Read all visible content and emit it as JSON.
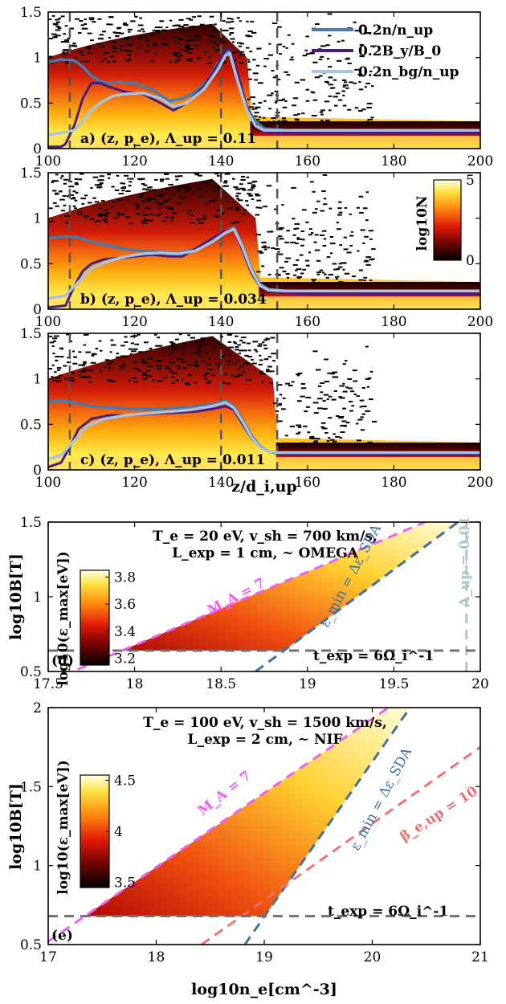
{
  "colors": {
    "n_line": "#4a7aa8",
    "By_line": "#4a1a80",
    "nbg_line": "#a8c4dc",
    "vline": "#555555",
    "MA_line": "#f060f0",
    "eps_line": "#4070a8",
    "beta_line": "#f07070",
    "lambda_line": "#a8c8cc",
    "texp_line": "#707070"
  },
  "chart_data": [
    {
      "panel": "a",
      "type": "heatmap",
      "xlim": [
        100,
        200
      ],
      "ylim": [
        0,
        1.5
      ],
      "x_ticks": [
        "100",
        "120",
        "140",
        "160",
        "180",
        "200"
      ],
      "y_ticks": [
        "0",
        "0.5",
        "1",
        "1.5"
      ],
      "xlabel": "",
      "panel_label": "a)  (z, p_e), Λ_up = 0.11",
      "vlines": [
        105,
        140,
        153
      ],
      "legend": [
        "0.2n/n_up",
        "0.2B_y/B_0",
        "0.2n_bg/n_up"
      ],
      "series": [
        {
          "name": "0.2n/n_up",
          "x": [
            100,
            103,
            106,
            108,
            110,
            113,
            116,
            120,
            124,
            128,
            131,
            134,
            137,
            139,
            141,
            142,
            144,
            146,
            148,
            150,
            155,
            160,
            180,
            200
          ],
          "y": [
            0.95,
            0.98,
            0.97,
            0.9,
            0.8,
            0.72,
            0.73,
            0.72,
            0.65,
            0.52,
            0.55,
            0.62,
            0.75,
            0.92,
            1.05,
            1.08,
            0.75,
            0.45,
            0.3,
            0.22,
            0.2,
            0.2,
            0.2,
            0.2
          ]
        },
        {
          "name": "0.2B_y/B_0",
          "x": [
            100,
            103,
            104,
            106,
            108,
            110,
            112,
            114,
            118,
            122,
            126,
            129,
            132,
            136,
            139,
            141,
            142,
            144,
            146,
            148,
            150,
            155,
            160,
            200
          ],
          "y": [
            0.02,
            0.02,
            0.05,
            0.25,
            0.55,
            0.72,
            0.72,
            0.68,
            0.62,
            0.6,
            0.5,
            0.42,
            0.5,
            0.68,
            0.9,
            1.08,
            1.1,
            0.8,
            0.45,
            0.25,
            0.18,
            0.17,
            0.17,
            0.17
          ]
        },
        {
          "name": "0.2n_bg/n_up",
          "x": [
            100,
            104,
            106,
            108,
            110,
            112,
            115,
            118,
            122,
            126,
            129,
            132,
            136,
            139,
            141,
            142,
            144,
            146,
            148,
            150,
            155,
            160,
            200
          ],
          "y": [
            0.15,
            0.18,
            0.2,
            0.3,
            0.42,
            0.5,
            0.58,
            0.6,
            0.61,
            0.55,
            0.46,
            0.5,
            0.65,
            0.85,
            1.02,
            1.05,
            0.72,
            0.42,
            0.25,
            0.2,
            0.2,
            0.2,
            0.2
          ]
        }
      ]
    },
    {
      "panel": "b",
      "type": "heatmap",
      "xlim": [
        100,
        200
      ],
      "ylim": [
        0,
        1.5
      ],
      "x_ticks": [
        "100",
        "120",
        "140",
        "160",
        "180",
        "200"
      ],
      "y_ticks": [
        "0",
        "0.5",
        "1",
        "1.5"
      ],
      "xlabel": "",
      "panel_label": "b)  (z, p_e), Λ_up = 0.034",
      "vlines": [
        105,
        140,
        153
      ],
      "colorbar": {
        "label": "log10N",
        "ticks": [
          "0",
          "5"
        ],
        "range": [
          0,
          5
        ]
      },
      "series": [
        {
          "name": "0.2n/n_up",
          "x": [
            100,
            104,
            107,
            110,
            114,
            118,
            122,
            126,
            130,
            134,
            138,
            141,
            143,
            145,
            147,
            149,
            151,
            155,
            160,
            200
          ],
          "y": [
            0.78,
            0.8,
            0.79,
            0.74,
            0.7,
            0.66,
            0.64,
            0.63,
            0.62,
            0.66,
            0.76,
            0.86,
            0.9,
            0.7,
            0.45,
            0.28,
            0.22,
            0.2,
            0.2,
            0.2
          ]
        },
        {
          "name": "0.2B_y/B_0",
          "x": [
            100,
            104,
            106,
            108,
            110,
            113,
            116,
            120,
            124,
            128,
            131,
            134,
            138,
            141,
            143,
            145,
            147,
            149,
            151,
            155,
            160,
            200
          ],
          "y": [
            0.02,
            0.04,
            0.25,
            0.42,
            0.5,
            0.55,
            0.56,
            0.58,
            0.6,
            0.58,
            0.58,
            0.66,
            0.78,
            0.86,
            0.88,
            0.65,
            0.4,
            0.25,
            0.2,
            0.18,
            0.17,
            0.17
          ]
        },
        {
          "name": "0.2n_bg/n_up",
          "x": [
            100,
            104,
            107,
            110,
            114,
            118,
            122,
            126,
            130,
            134,
            138,
            141,
            143,
            145,
            147,
            149,
            151,
            155,
            160,
            200
          ],
          "y": [
            0.12,
            0.15,
            0.3,
            0.45,
            0.53,
            0.58,
            0.61,
            0.62,
            0.61,
            0.64,
            0.74,
            0.84,
            0.88,
            0.68,
            0.43,
            0.26,
            0.21,
            0.2,
            0.2,
            0.2
          ]
        }
      ]
    },
    {
      "panel": "c",
      "type": "heatmap",
      "xlim": [
        100,
        200
      ],
      "ylim": [
        0,
        1.5
      ],
      "x_ticks": [
        "100",
        "120",
        "140",
        "160",
        "180",
        "200"
      ],
      "y_ticks": [
        "0",
        "0.5",
        "1",
        "1.5"
      ],
      "xlabel": "z/d_i,up",
      "panel_label": "c)  (z, p_e), Λ_up = 0.011",
      "vlines": [
        105,
        140,
        153
      ],
      "series": [
        {
          "name": "0.2n/n_up",
          "x": [
            100,
            103,
            106,
            110,
            115,
            120,
            125,
            130,
            135,
            139,
            141,
            143,
            145,
            147,
            149,
            151,
            153,
            156,
            160,
            200
          ],
          "y": [
            0.75,
            0.76,
            0.74,
            0.7,
            0.68,
            0.67,
            0.67,
            0.68,
            0.7,
            0.73,
            0.76,
            0.7,
            0.55,
            0.38,
            0.26,
            0.2,
            0.19,
            0.19,
            0.19,
            0.19
          ]
        },
        {
          "name": "0.2B_y/B_0",
          "x": [
            100,
            103,
            105,
            107,
            110,
            114,
            118,
            122,
            126,
            130,
            134,
            138,
            141,
            143,
            145,
            147,
            149,
            151,
            153,
            156,
            160,
            200
          ],
          "y": [
            0.03,
            0.08,
            0.25,
            0.45,
            0.56,
            0.6,
            0.6,
            0.61,
            0.62,
            0.63,
            0.64,
            0.67,
            0.7,
            0.66,
            0.5,
            0.35,
            0.25,
            0.2,
            0.18,
            0.17,
            0.17,
            0.17
          ]
        },
        {
          "name": "0.2n_bg/n_up",
          "x": [
            100,
            103,
            106,
            109,
            113,
            118,
            123,
            128,
            133,
            138,
            141,
            143,
            145,
            147,
            149,
            151,
            153,
            156,
            160,
            200
          ],
          "y": [
            0.12,
            0.16,
            0.32,
            0.48,
            0.56,
            0.6,
            0.62,
            0.64,
            0.66,
            0.7,
            0.74,
            0.68,
            0.53,
            0.36,
            0.25,
            0.2,
            0.19,
            0.19,
            0.19,
            0.19
          ]
        }
      ]
    },
    {
      "panel": "d",
      "type": "heatmap",
      "xlim": [
        17.5,
        20
      ],
      "ylim": [
        0.5,
        1.5
      ],
      "x_ticks": [
        "17.5",
        "18",
        "18.5",
        "19",
        "19.5",
        "20"
      ],
      "y_ticks": [
        "0.5",
        "1",
        "1.5"
      ],
      "ylabel": "log10B[T]",
      "panel_label": "(d)",
      "title_lines": [
        "T_e = 20 eV, v_sh = 700 km/s,",
        "L_exp = 1 cm, ~ OMEGA"
      ],
      "colorbar": {
        "label": "log10(ε_max[eV])",
        "ticks": [
          "3.2",
          "3.4",
          "3.6",
          "3.8"
        ],
        "range": [
          3.15,
          3.85
        ]
      },
      "lines": [
        {
          "name": "M_A = 7",
          "x": [
            17.5,
            19.72
          ],
          "y": [
            0.43,
            1.52
          ]
        },
        {
          "name": "ε_min = Δε_SDA",
          "x": [
            18.7,
            19.93
          ],
          "y": [
            0.5,
            1.55
          ]
        },
        {
          "name": "Λ_up = 0.01",
          "x": [
            19.92,
            19.92
          ],
          "y": [
            0.5,
            1.5
          ]
        },
        {
          "name": "t_exp = 6Ω_i^-1",
          "x": [
            17.5,
            20
          ],
          "y": [
            0.64,
            0.64
          ]
        }
      ]
    },
    {
      "panel": "e",
      "type": "heatmap",
      "xlim": [
        17,
        21
      ],
      "ylim": [
        0.5,
        2
      ],
      "x_ticks": [
        "17",
        "18",
        "19",
        "20",
        "21"
      ],
      "y_ticks": [
        "0.5",
        "1",
        "1.5",
        "2"
      ],
      "xlabel": "log10n_e[cm^-3]",
      "ylabel": "log10B[T]",
      "panel_label": "(e)",
      "title_lines": [
        "T_e = 100 eV, v_sh = 1500 km/s,",
        "L_exp = 2 cm, ~ NIF"
      ],
      "colorbar": {
        "label": "log10(ε_max[eV])",
        "ticks": [
          "3.5",
          "4",
          "4.5"
        ],
        "range": [
          3.45,
          4.55
        ]
      },
      "lines": [
        {
          "name": "M_A = 7",
          "x": [
            17,
            20.15
          ],
          "y": [
            0.52,
            2.0
          ]
        },
        {
          "name": "ε_min = Δε_SDA",
          "x": [
            18.82,
            20.35
          ],
          "y": [
            0.5,
            2.0
          ]
        },
        {
          "name": "β_e,up = 10",
          "x": [
            18.42,
            21
          ],
          "y": [
            0.5,
            1.75
          ]
        },
        {
          "name": "t_exp = 6Ω_i^-1",
          "x": [
            17,
            21
          ],
          "y": [
            0.68,
            0.68
          ]
        }
      ]
    }
  ]
}
